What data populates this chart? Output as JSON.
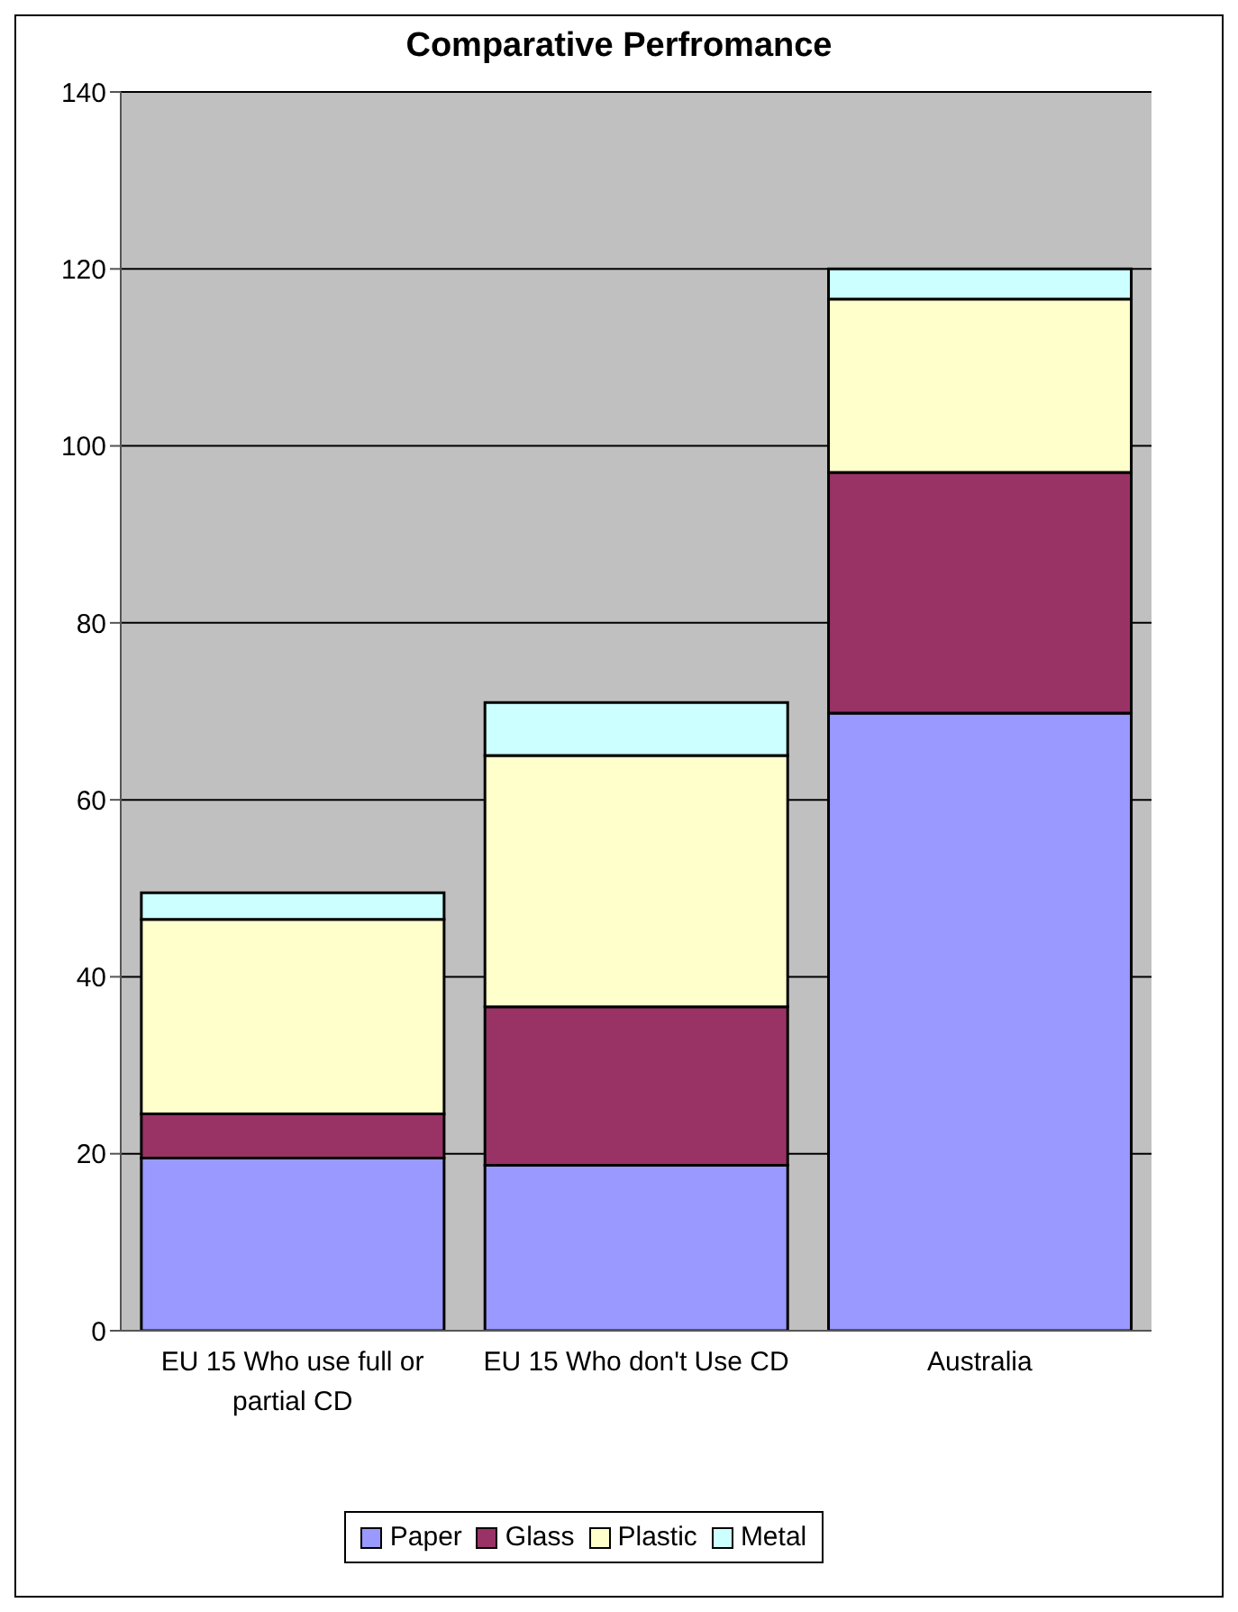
{
  "chart_data": {
    "type": "bar",
    "title": "Comparative Perfromance",
    "categories": [
      "EU 15 Who use full or partial CD",
      "EU 15 Who don't Use CD",
      "Australia"
    ],
    "stacked": true,
    "series": [
      {
        "name": "Paper",
        "color": "#9999ff",
        "values": [
          19.5,
          18.7,
          69.8
        ]
      },
      {
        "name": "Glass",
        "color": "#993366",
        "values": [
          5,
          17.9,
          27.2
        ]
      },
      {
        "name": "Plastic",
        "color": "#ffffcc",
        "values": [
          22,
          28.4,
          19.6
        ]
      },
      {
        "name": "Metal",
        "color": "#ccffff",
        "values": [
          3,
          6,
          3.4
        ]
      }
    ],
    "ylim": [
      0,
      140
    ],
    "yticks": [
      0,
      20,
      40,
      60,
      80,
      100,
      120,
      140
    ],
    "grid": "y",
    "legend": "bottom"
  }
}
